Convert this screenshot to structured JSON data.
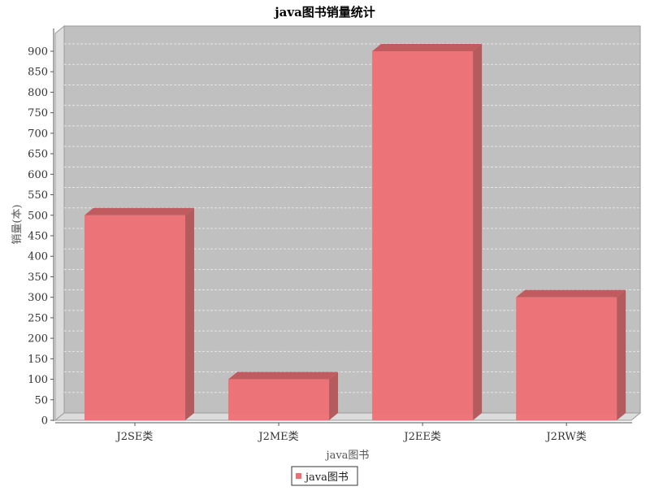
{
  "chart_data": {
    "type": "bar",
    "title": "java图书销量统计",
    "xlabel": "java图书",
    "ylabel": "销量(本)",
    "categories": [
      "J2SE类",
      "J2ME类",
      "J2EE类",
      "J2RW类"
    ],
    "series": [
      {
        "name": "java图书",
        "values": [
          500,
          100,
          900,
          300
        ]
      }
    ],
    "ylim": [
      0,
      950
    ],
    "yticks": [
      0,
      50,
      100,
      150,
      200,
      250,
      300,
      350,
      400,
      450,
      500,
      550,
      600,
      650,
      700,
      750,
      800,
      850,
      900
    ],
    "grid": true,
    "three_d": true,
    "legend_position": "bottom",
    "colors": {
      "bar_front": "#ee6f73",
      "bar_side": "#b45b5d",
      "bar_top": "#c05c5f",
      "plot_background": "#c0c0c0",
      "plot_wall": "#dcdcdc",
      "gridline": "#e6e6e6",
      "title": "#000000"
    }
  }
}
